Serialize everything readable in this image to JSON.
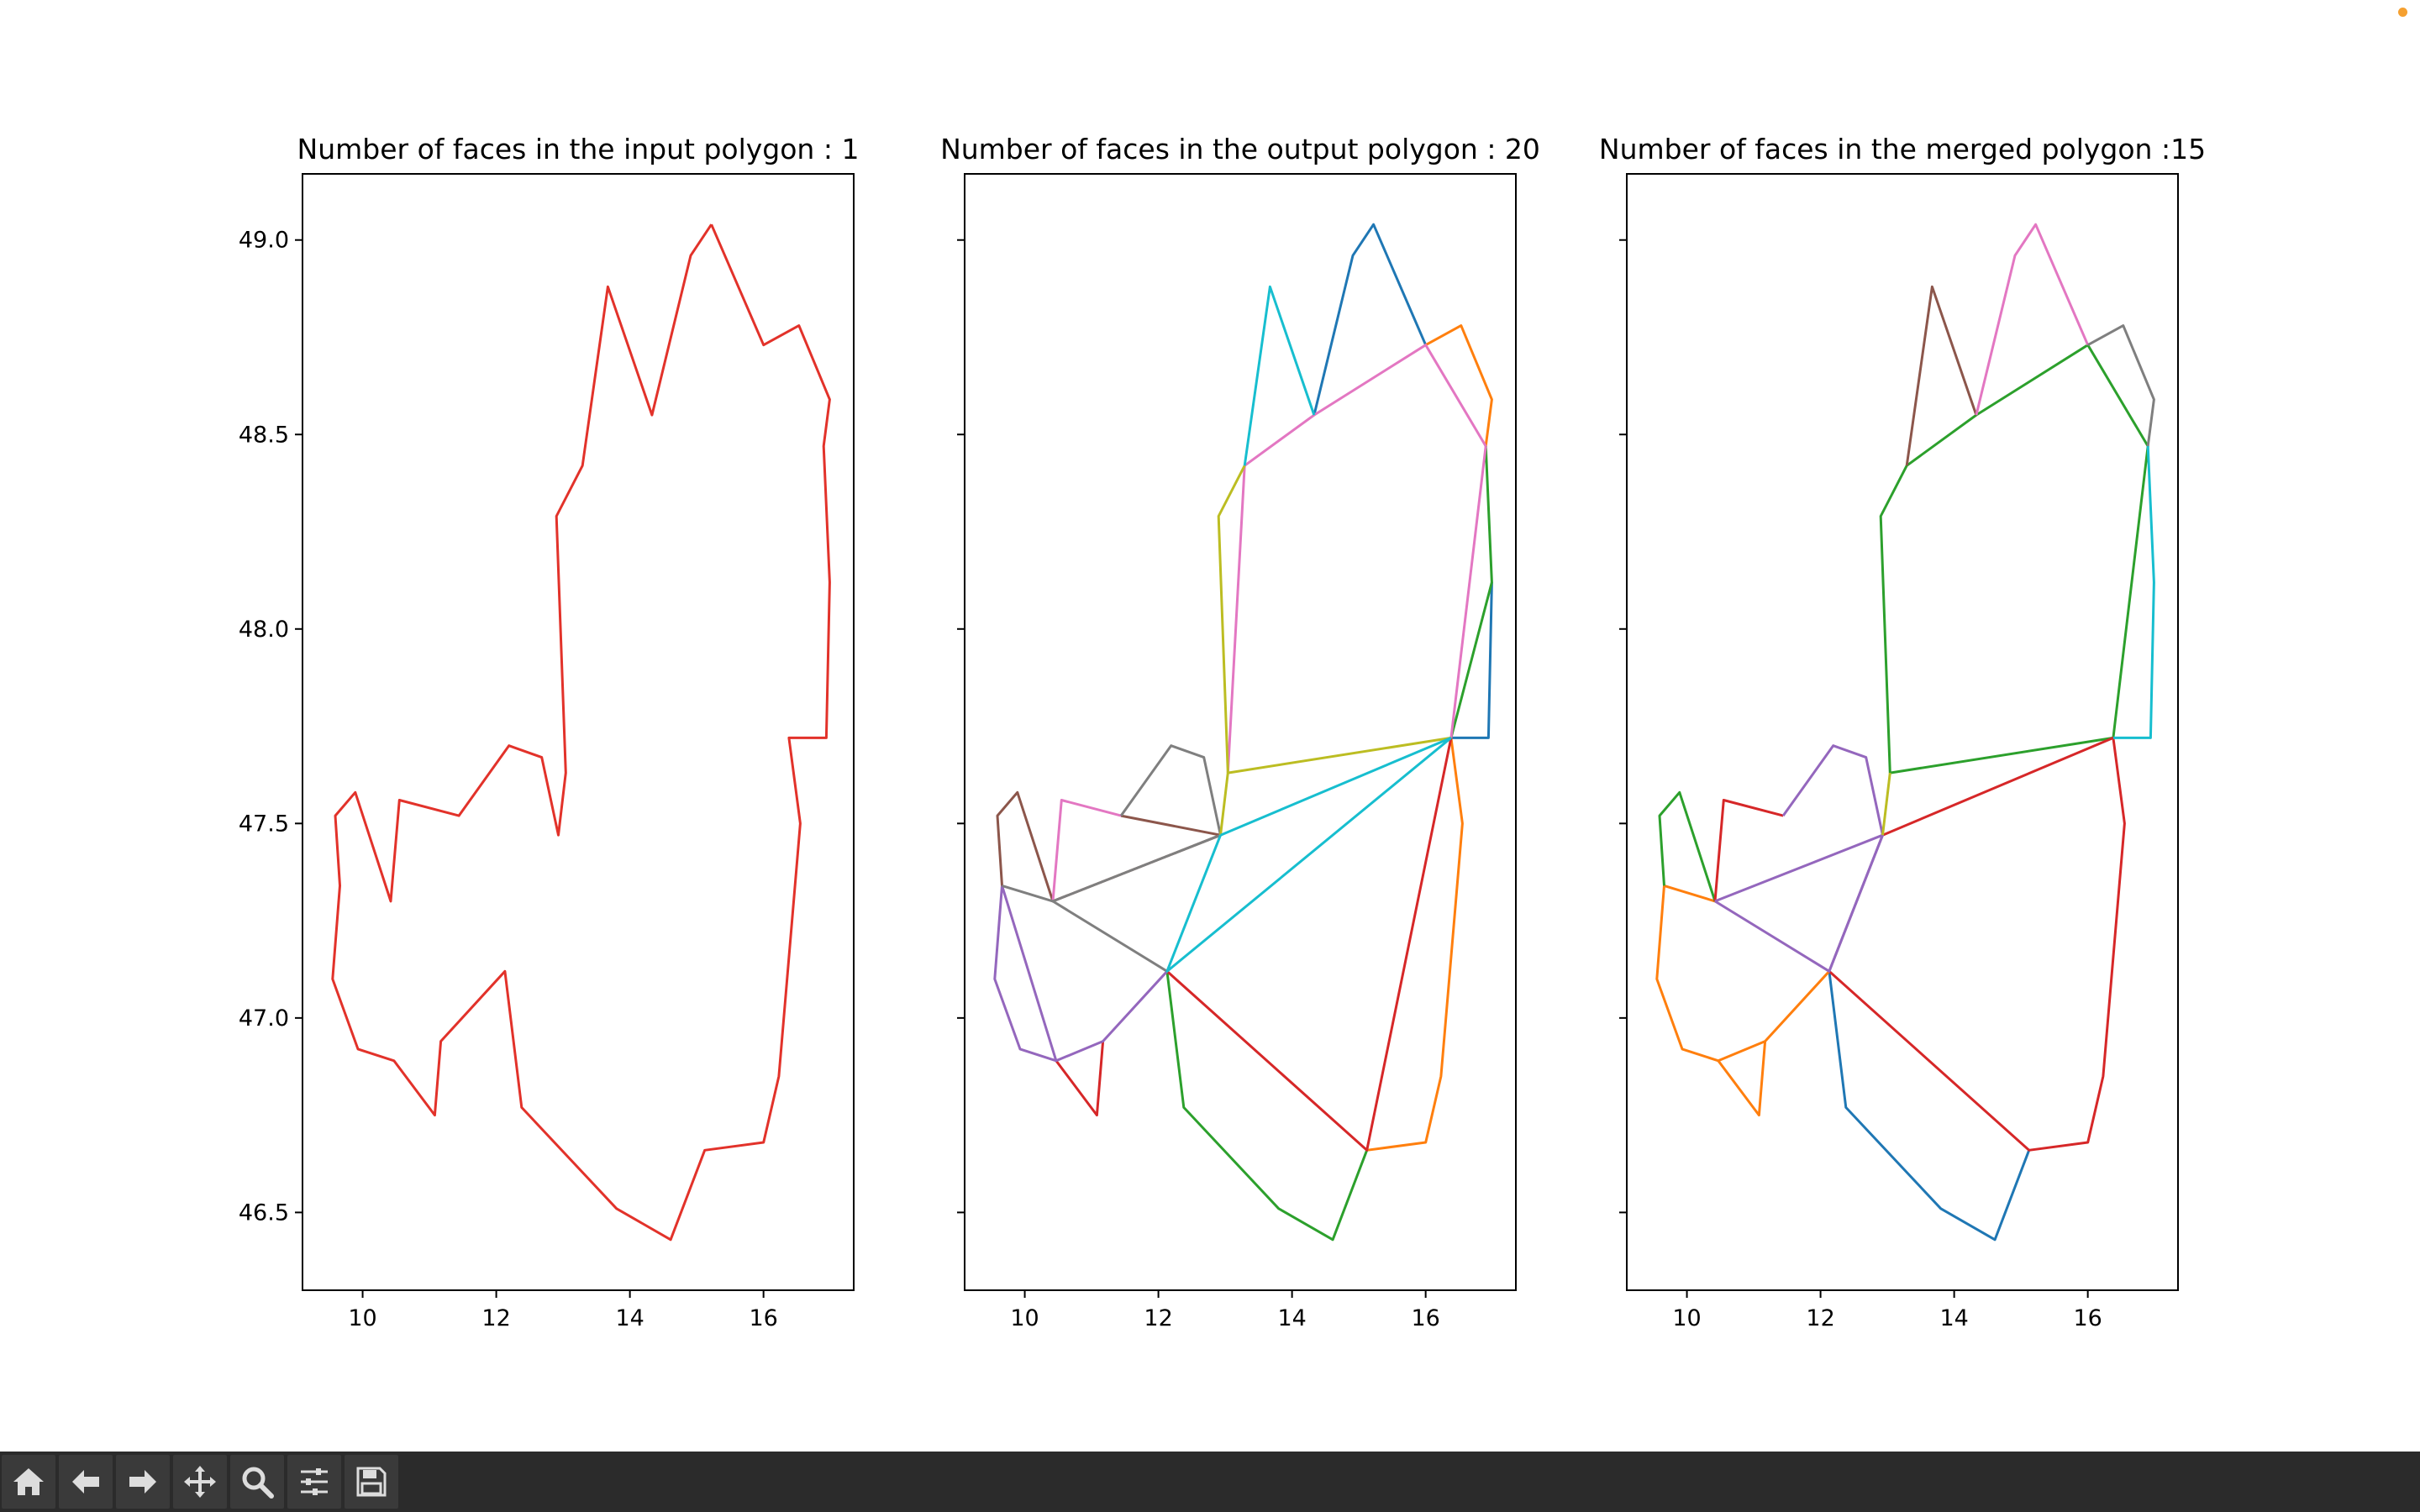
{
  "window": {
    "status_dot_color": "#f5a030"
  },
  "toolbar": {
    "buttons": [
      {
        "name": "home-icon"
      },
      {
        "name": "back-arrow-icon"
      },
      {
        "name": "forward-arrow-icon"
      },
      {
        "name": "pan-icon"
      },
      {
        "name": "zoom-icon"
      },
      {
        "name": "configure-subplots-icon"
      },
      {
        "name": "save-icon"
      }
    ]
  },
  "chart_data": [
    {
      "type": "line",
      "title": "Number of faces in the input polygon :  1",
      "xlim": [
        9.1,
        17.35
      ],
      "ylim": [
        46.3,
        49.17
      ],
      "xticks": [
        10,
        12,
        14,
        16
      ],
      "yticks": [
        46.5,
        47.0,
        47.5,
        48.0,
        48.5,
        49.0
      ],
      "show_yticklabels": true,
      "series": [
        {
          "color": "#e2322a",
          "points": [
            [
              15.22,
              49.04
            ],
            [
              16.0,
              48.73
            ],
            [
              16.53,
              48.78
            ],
            [
              16.99,
              48.59
            ],
            [
              16.9,
              48.47
            ],
            [
              16.99,
              48.12
            ],
            [
              16.94,
              47.72
            ],
            [
              16.38,
              47.72
            ],
            [
              16.55,
              47.5
            ],
            [
              16.23,
              46.85
            ],
            [
              16.0,
              46.68
            ],
            [
              15.12,
              46.66
            ],
            [
              14.61,
              46.43
            ],
            [
              13.8,
              46.51
            ],
            [
              12.38,
              46.77
            ],
            [
              12.13,
              47.12
            ],
            [
              11.17,
              46.94
            ],
            [
              11.08,
              46.75
            ],
            [
              10.47,
              46.89
            ],
            [
              9.93,
              46.92
            ],
            [
              9.55,
              47.1
            ],
            [
              9.66,
              47.34
            ],
            [
              9.59,
              47.52
            ],
            [
              9.89,
              47.58
            ],
            [
              10.42,
              47.3
            ],
            [
              10.55,
              47.56
            ],
            [
              11.44,
              47.52
            ],
            [
              12.19,
              47.7
            ],
            [
              12.68,
              47.67
            ],
            [
              12.93,
              47.47
            ],
            [
              13.04,
              47.63
            ],
            [
              12.9,
              48.29
            ],
            [
              13.29,
              48.42
            ],
            [
              13.67,
              48.88
            ],
            [
              14.33,
              48.55
            ],
            [
              14.91,
              48.96
            ],
            [
              15.22,
              49.04
            ]
          ]
        }
      ]
    },
    {
      "type": "line",
      "title": "Number of faces in the output polygon : 20",
      "xlim": [
        9.1,
        17.35
      ],
      "ylim": [
        46.3,
        49.17
      ],
      "xticks": [
        10,
        12,
        14,
        16
      ],
      "yticks": [
        46.5,
        47.0,
        47.5,
        48.0,
        48.5,
        49.0
      ],
      "show_yticklabels": false,
      "series": [
        {
          "color": "#1f77b4",
          "points": [
            [
              14.33,
              48.55
            ],
            [
              14.91,
              48.96
            ],
            [
              15.22,
              49.04
            ],
            [
              16.0,
              48.73
            ]
          ]
        },
        {
          "color": "#1f77b4",
          "points": [
            [
              16.38,
              47.72
            ],
            [
              16.94,
              47.72
            ],
            [
              16.99,
              48.12
            ]
          ]
        },
        {
          "color": "#ff7f0e",
          "points": [
            [
              16.0,
              48.73
            ],
            [
              16.53,
              48.78
            ],
            [
              16.99,
              48.59
            ],
            [
              16.9,
              48.47
            ]
          ]
        },
        {
          "color": "#ff7f0e",
          "points": [
            [
              16.38,
              47.72
            ],
            [
              16.55,
              47.5
            ],
            [
              16.23,
              46.85
            ],
            [
              16.0,
              46.68
            ],
            [
              15.12,
              46.66
            ]
          ]
        },
        {
          "color": "#2ca02c",
          "points": [
            [
              16.9,
              48.47
            ],
            [
              16.99,
              48.12
            ],
            [
              16.38,
              47.72
            ]
          ]
        },
        {
          "color": "#2ca02c",
          "points": [
            [
              12.13,
              47.12
            ],
            [
              12.38,
              46.77
            ],
            [
              13.8,
              46.51
            ],
            [
              14.61,
              46.43
            ],
            [
              15.12,
              46.66
            ]
          ]
        },
        {
          "color": "#d62728",
          "points": [
            [
              16.38,
              47.72
            ],
            [
              15.12,
              46.66
            ],
            [
              12.13,
              47.12
            ]
          ]
        },
        {
          "color": "#d62728",
          "points": [
            [
              10.47,
              46.89
            ],
            [
              11.08,
              46.75
            ],
            [
              11.17,
              46.94
            ]
          ]
        },
        {
          "color": "#9467bd",
          "points": [
            [
              12.13,
              47.12
            ],
            [
              11.17,
              46.94
            ],
            [
              10.47,
              46.89
            ],
            [
              9.93,
              46.92
            ],
            [
              9.55,
              47.1
            ],
            [
              9.66,
              47.34
            ],
            [
              10.47,
              46.89
            ]
          ]
        },
        {
          "color": "#8c564b",
          "points": [
            [
              9.66,
              47.34
            ],
            [
              9.59,
              47.52
            ],
            [
              9.89,
              47.58
            ],
            [
              10.42,
              47.3
            ],
            [
              12.93,
              47.47
            ],
            [
              11.44,
              47.52
            ]
          ]
        },
        {
          "color": "#e377c2",
          "points": [
            [
              10.42,
              47.3
            ],
            [
              10.55,
              47.56
            ],
            [
              11.44,
              47.52
            ]
          ]
        },
        {
          "color": "#e377c2",
          "points": [
            [
              16.9,
              48.47
            ],
            [
              16.0,
              48.73
            ],
            [
              14.33,
              48.55
            ],
            [
              13.29,
              48.42
            ],
            [
              13.04,
              47.63
            ]
          ]
        },
        {
          "color": "#e377c2",
          "points": [
            [
              16.9,
              48.47
            ],
            [
              16.38,
              47.72
            ]
          ]
        },
        {
          "color": "#7f7f7f",
          "points": [
            [
              9.66,
              47.34
            ],
            [
              10.42,
              47.3
            ],
            [
              12.13,
              47.12
            ]
          ]
        },
        {
          "color": "#7f7f7f",
          "points": [
            [
              10.42,
              47.3
            ],
            [
              12.93,
              47.47
            ]
          ]
        },
        {
          "color": "#7f7f7f",
          "points": [
            [
              11.44,
              47.52
            ],
            [
              12.19,
              47.7
            ],
            [
              12.68,
              47.67
            ],
            [
              12.93,
              47.47
            ]
          ]
        },
        {
          "color": "#bcbd22",
          "points": [
            [
              12.93,
              47.47
            ],
            [
              13.04,
              47.63
            ],
            [
              16.38,
              47.72
            ]
          ]
        },
        {
          "color": "#bcbd22",
          "points": [
            [
              13.04,
              47.63
            ],
            [
              12.9,
              48.29
            ],
            [
              13.29,
              48.42
            ]
          ]
        },
        {
          "color": "#17becf",
          "points": [
            [
              13.29,
              48.42
            ],
            [
              13.67,
              48.88
            ],
            [
              14.33,
              48.55
            ]
          ]
        },
        {
          "color": "#17becf",
          "points": [
            [
              12.93,
              47.47
            ],
            [
              16.38,
              47.72
            ]
          ]
        },
        {
          "color": "#17becf",
          "points": [
            [
              12.93,
              47.47
            ],
            [
              12.13,
              47.12
            ],
            [
              16.38,
              47.72
            ]
          ]
        }
      ]
    },
    {
      "type": "line",
      "title": "Number of faces in the merged polygon :15",
      "xlim": [
        9.1,
        17.35
      ],
      "ylim": [
        46.3,
        49.17
      ],
      "xticks": [
        10,
        12,
        14,
        16
      ],
      "yticks": [
        46.5,
        47.0,
        47.5,
        48.0,
        48.5,
        49.0
      ],
      "show_yticklabels": false,
      "series": [
        {
          "color": "#1f77b4",
          "points": [
            [
              12.13,
              47.12
            ],
            [
              12.38,
              46.77
            ],
            [
              13.8,
              46.51
            ],
            [
              14.61,
              46.43
            ],
            [
              15.12,
              46.66
            ]
          ]
        },
        {
          "color": "#ff7f0e",
          "points": [
            [
              12.13,
              47.12
            ],
            [
              11.17,
              46.94
            ],
            [
              10.47,
              46.89
            ],
            [
              9.93,
              46.92
            ],
            [
              9.55,
              47.1
            ],
            [
              9.66,
              47.34
            ],
            [
              10.42,
              47.3
            ]
          ]
        },
        {
          "color": "#ff7f0e",
          "points": [
            [
              10.47,
              46.89
            ],
            [
              11.08,
              46.75
            ],
            [
              11.17,
              46.94
            ]
          ]
        },
        {
          "color": "#2ca02c",
          "points": [
            [
              9.66,
              47.34
            ],
            [
              9.59,
              47.52
            ],
            [
              9.89,
              47.58
            ],
            [
              10.42,
              47.3
            ]
          ]
        },
        {
          "color": "#2ca02c",
          "points": [
            [
              16.38,
              47.72
            ],
            [
              13.04,
              47.63
            ],
            [
              12.9,
              48.29
            ],
            [
              13.29,
              48.42
            ],
            [
              14.33,
              48.55
            ],
            [
              16.0,
              48.73
            ],
            [
              16.9,
              48.47
            ],
            [
              16.38,
              47.72
            ]
          ]
        },
        {
          "color": "#d62728",
          "points": [
            [
              10.42,
              47.3
            ],
            [
              10.55,
              47.56
            ],
            [
              11.44,
              47.52
            ]
          ]
        },
        {
          "color": "#d62728",
          "points": [
            [
              12.93,
              47.47
            ],
            [
              16.38,
              47.72
            ],
            [
              16.55,
              47.5
            ],
            [
              16.23,
              46.85
            ],
            [
              16.0,
              46.68
            ],
            [
              15.12,
              46.66
            ],
            [
              12.13,
              47.12
            ]
          ]
        },
        {
          "color": "#9467bd",
          "points": [
            [
              10.42,
              47.3
            ],
            [
              12.13,
              47.12
            ],
            [
              12.93,
              47.47
            ],
            [
              10.42,
              47.3
            ]
          ]
        },
        {
          "color": "#9467bd",
          "points": [
            [
              11.44,
              47.52
            ],
            [
              12.19,
              47.7
            ],
            [
              12.68,
              47.67
            ],
            [
              12.93,
              47.47
            ]
          ]
        },
        {
          "color": "#9467bd",
          "points": [
            [
              12.13,
              47.12
            ],
            [
              12.93,
              47.47
            ]
          ]
        },
        {
          "color": "#8c564b",
          "points": [
            [
              13.29,
              48.42
            ],
            [
              13.67,
              48.88
            ],
            [
              14.33,
              48.55
            ]
          ]
        },
        {
          "color": "#e377c2",
          "points": [
            [
              14.33,
              48.55
            ],
            [
              14.91,
              48.96
            ],
            [
              15.22,
              49.04
            ],
            [
              16.0,
              48.73
            ]
          ]
        },
        {
          "color": "#7f7f7f",
          "points": [
            [
              16.0,
              48.73
            ],
            [
              16.53,
              48.78
            ],
            [
              16.99,
              48.59
            ],
            [
              16.9,
              48.47
            ]
          ]
        },
        {
          "color": "#bcbd22",
          "points": [
            [
              12.93,
              47.47
            ],
            [
              13.04,
              47.63
            ]
          ]
        },
        {
          "color": "#17becf",
          "points": [
            [
              16.9,
              48.47
            ],
            [
              16.99,
              48.12
            ],
            [
              16.94,
              47.72
            ],
            [
              16.38,
              47.72
            ]
          ]
        }
      ]
    }
  ]
}
